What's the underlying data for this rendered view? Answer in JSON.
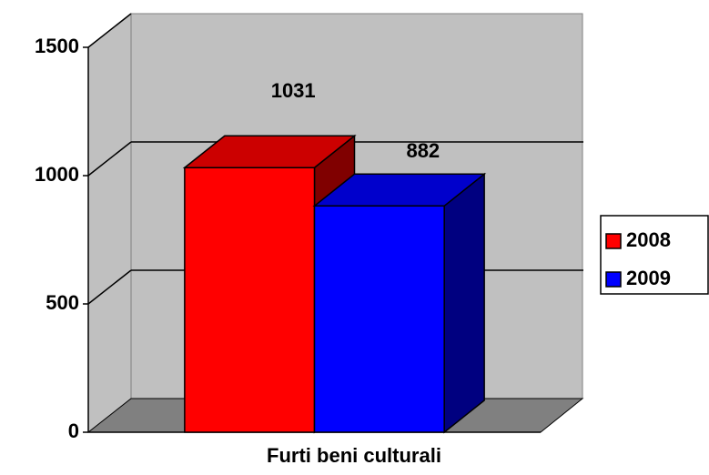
{
  "chart_data": {
    "type": "bar3d",
    "categories": [
      "Furti beni culturali"
    ],
    "series": [
      {
        "name": "2008",
        "color": "#ff0000",
        "values": [
          1031
        ]
      },
      {
        "name": "2009",
        "color": "#0000ff",
        "values": [
          882
        ]
      }
    ],
    "ylim": [
      0,
      1500
    ],
    "yticks": [
      0,
      500,
      1000,
      1500
    ],
    "grid": true,
    "legend": "right"
  }
}
